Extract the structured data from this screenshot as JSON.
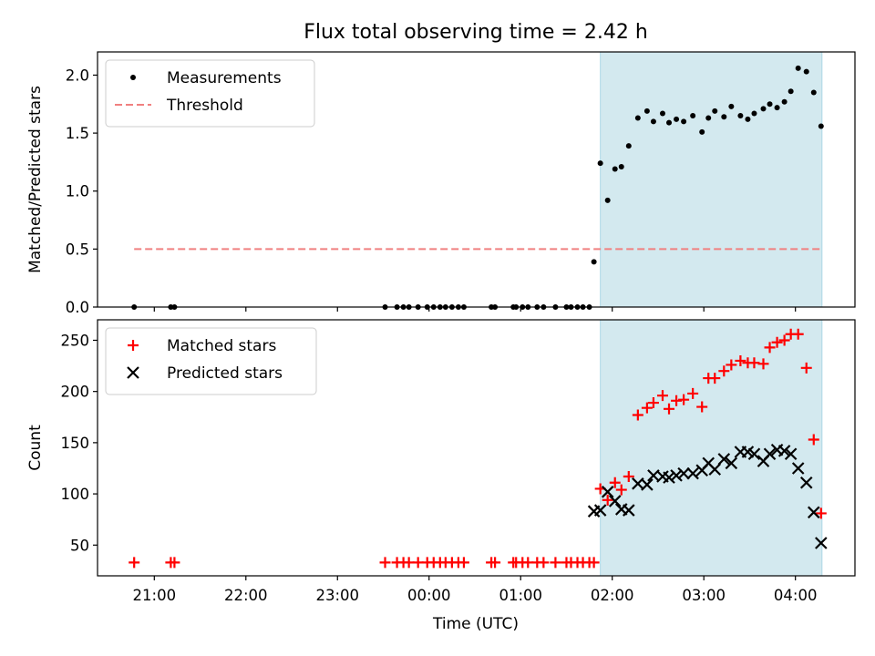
{
  "chart_data": {
    "title": "Flux total observing time = 2.42 h",
    "type": "scatter",
    "x_tick_labels": [
      "21:00",
      "22:00",
      "23:00",
      "00:00",
      "01:00",
      "02:00",
      "03:00",
      "04:00"
    ],
    "x_ticks_hours": [
      21,
      22,
      23,
      24,
      25,
      26,
      27,
      28
    ],
    "xlim_hours": [
      20.38,
      28.65
    ],
    "xlabel": "Time (UTC)",
    "shaded_interval_hours": [
      25.87,
      28.29
    ],
    "shade_color": "#d3e9ef",
    "x_times_hours": [
      20.78,
      21.18,
      21.22,
      23.52,
      23.65,
      23.72,
      23.78,
      23.88,
      23.98,
      24.05,
      24.12,
      24.18,
      24.25,
      24.32,
      24.38,
      24.68,
      24.72,
      24.92,
      24.95,
      25.02,
      25.08,
      25.18,
      25.25,
      25.38,
      25.5,
      25.55,
      25.62,
      25.68,
      25.75,
      25.8,
      25.87,
      25.95,
      26.03,
      26.1,
      26.18,
      26.28,
      26.38,
      26.45,
      26.55,
      26.62,
      26.7,
      26.78,
      26.88,
      26.98,
      27.05,
      27.12,
      27.22,
      27.3,
      27.4,
      27.48,
      27.55,
      27.65,
      27.72,
      27.8,
      27.88,
      27.95,
      28.03,
      28.12,
      28.2,
      28.28
    ],
    "panels": [
      {
        "ylabel": "Matched/Predicted stars",
        "ylim": [
          0,
          2.2
        ],
        "y_ticks": [
          0.0,
          0.5,
          1.0,
          1.5,
          2.0
        ],
        "y_tick_labels": [
          "0.0",
          "0.5",
          "1.0",
          "1.5",
          "2.0"
        ],
        "legend_position": "upper left",
        "series": [
          {
            "name": "Measurements",
            "marker": "dot",
            "color": "#000000",
            "values": [
              0,
              0,
              0,
              0,
              0,
              0,
              0,
              0,
              0,
              0,
              0,
              0,
              0,
              0,
              0,
              0,
              0,
              0,
              0,
              0,
              0,
              0,
              0,
              0,
              0,
              0,
              0,
              0,
              0,
              0.39,
              1.24,
              0.92,
              1.19,
              1.21,
              1.39,
              1.63,
              1.69,
              1.6,
              1.67,
              1.59,
              1.62,
              1.6,
              1.65,
              1.51,
              1.63,
              1.69,
              1.64,
              1.73,
              1.65,
              1.62,
              1.67,
              1.71,
              1.75,
              1.72,
              1.77,
              1.86,
              2.06,
              2.03,
              1.85,
              1.56
            ]
          }
        ],
        "threshold": {
          "name": "Threshold",
          "value": 0.5,
          "x_range_hours": [
            20.78,
            28.29
          ],
          "color": "#f08080",
          "style": "dashed"
        }
      },
      {
        "ylabel": "Count",
        "ylim": [
          20,
          270
        ],
        "y_ticks": [
          50,
          100,
          150,
          200,
          250
        ],
        "y_tick_labels": [
          "50",
          "100",
          "150",
          "200",
          "250"
        ],
        "legend_position": "upper left",
        "series": [
          {
            "name": "Matched stars",
            "marker": "plus",
            "color": "#ff0000",
            "values": [
              33,
              33,
              33,
              33,
              33,
              33,
              33,
              33,
              33,
              33,
              33,
              33,
              33,
              33,
              33,
              33,
              33,
              33,
              33,
              33,
              33,
              33,
              33,
              33,
              33,
              33,
              33,
              33,
              33,
              33,
              105,
              94,
              111,
              104,
              117,
              177,
              184,
              189,
              196,
              183,
              191,
              192,
              198,
              185,
              213,
              213,
              220,
              226,
              230,
              228,
              228,
              227,
              243,
              248,
              250,
              256,
              256,
              223,
              153,
              81
            ]
          },
          {
            "name": "Predicted stars",
            "marker": "cross",
            "color": "#000000",
            "values": [
              null,
              null,
              null,
              null,
              null,
              null,
              null,
              null,
              null,
              null,
              null,
              null,
              null,
              null,
              null,
              null,
              null,
              null,
              null,
              null,
              null,
              null,
              null,
              null,
              null,
              null,
              null,
              null,
              null,
              83,
              84,
              102,
              93,
              85,
              84,
              110,
              109,
              118,
              117,
              116,
              118,
              120,
              120,
              123,
              130,
              124,
              134,
              130,
              141,
              141,
              139,
              132,
              139,
              143,
              142,
              139,
              125,
              111,
              82,
              52
            ]
          }
        ]
      }
    ]
  }
}
